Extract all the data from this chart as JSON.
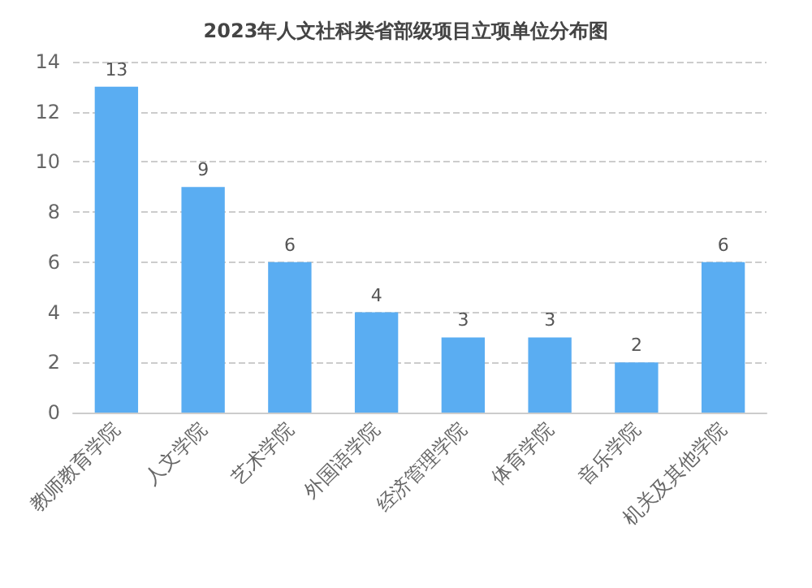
{
  "chart_data": {
    "type": "bar",
    "title": "2023年人文社科类省部级项目立项单位分布图",
    "categories": [
      "教师教育学院",
      "人文学院",
      "艺术学院",
      "外国语学院",
      "经济管理学院",
      "体育学院",
      "音乐学院",
      "机关及其他学院"
    ],
    "values": [
      13,
      9,
      6,
      4,
      3,
      3,
      2,
      6
    ],
    "color": "#5aadf2",
    "ylim": [
      0,
      14
    ],
    "yticks": [
      0,
      2,
      4,
      6,
      8,
      10,
      12,
      14
    ],
    "grid": "y",
    "data_labels": true
  }
}
